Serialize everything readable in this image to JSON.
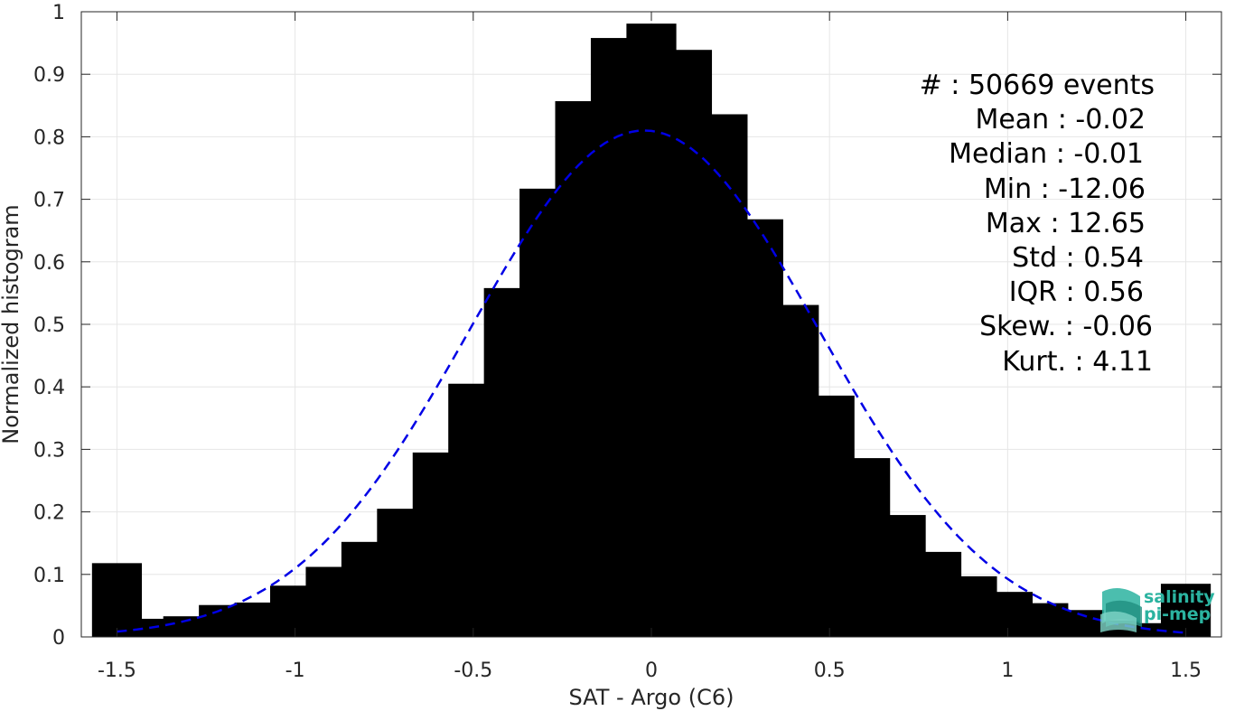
{
  "chart_data": {
    "type": "bar",
    "xlabel": "SAT - Argo (C6)",
    "ylabel": "Normalized histogram",
    "xlim": [
      -1.6,
      1.6
    ],
    "ylim": [
      0,
      1
    ],
    "grid": true,
    "x_ticks": [
      -1.5,
      -1,
      -0.5,
      0,
      0.5,
      1,
      1.5
    ],
    "x_tick_labels": [
      "-1.5",
      "-1",
      "-0.5",
      "0",
      "0.5",
      "1",
      "1.5"
    ],
    "y_ticks": [
      0,
      0.1,
      0.2,
      0.3,
      0.4,
      0.5,
      0.6,
      0.7,
      0.8,
      0.9,
      1
    ],
    "y_tick_labels": [
      "0",
      "0.1",
      "0.2",
      "0.3",
      "0.4",
      "0.5",
      "0.6",
      "0.7",
      "0.8",
      "0.9",
      "1"
    ],
    "bar_color": "#000000",
    "bins": [
      -1.5,
      -1.4,
      -1.3,
      -1.2,
      -1.1,
      -1.0,
      -0.9,
      -0.8,
      -0.7,
      -0.6,
      -0.5,
      -0.4,
      -0.3,
      -0.2,
      -0.1,
      0.0,
      0.1,
      0.2,
      0.3,
      0.4,
      0.5,
      0.6,
      0.7,
      0.8,
      0.9,
      1.0,
      1.1,
      1.2,
      1.3,
      1.4,
      1.5
    ],
    "values": [
      0.118,
      0.029,
      0.033,
      0.051,
      0.055,
      0.082,
      0.112,
      0.152,
      0.205,
      0.295,
      0.405,
      0.558,
      0.717,
      0.857,
      0.958,
      0.981,
      0.939,
      0.836,
      0.668,
      0.531,
      0.386,
      0.286,
      0.195,
      0.136,
      0.097,
      0.072,
      0.054,
      0.043,
      0.026,
      0.022,
      0.085
    ],
    "fit_curve": {
      "style": "dashed",
      "color": "#0000e6",
      "mean": -0.02,
      "std": 0.49,
      "peak": 0.81,
      "x_range": [
        -1.5,
        1.5
      ]
    }
  },
  "stats": {
    "count": "#  : 50669 events",
    "mean": "Mean : -0.02",
    "median": "Median : -0.01",
    "min": "Min : -12.06",
    "max": "Max : 12.65",
    "std": "Std : 0.54",
    "iqr": "IQR : 0.56",
    "skew": "Skew. : -0.06",
    "kurt": "Kurt. : 4.11"
  },
  "logo": {
    "line1": "salinity",
    "line2": "pi-mep",
    "color": "#2bb3a0"
  }
}
